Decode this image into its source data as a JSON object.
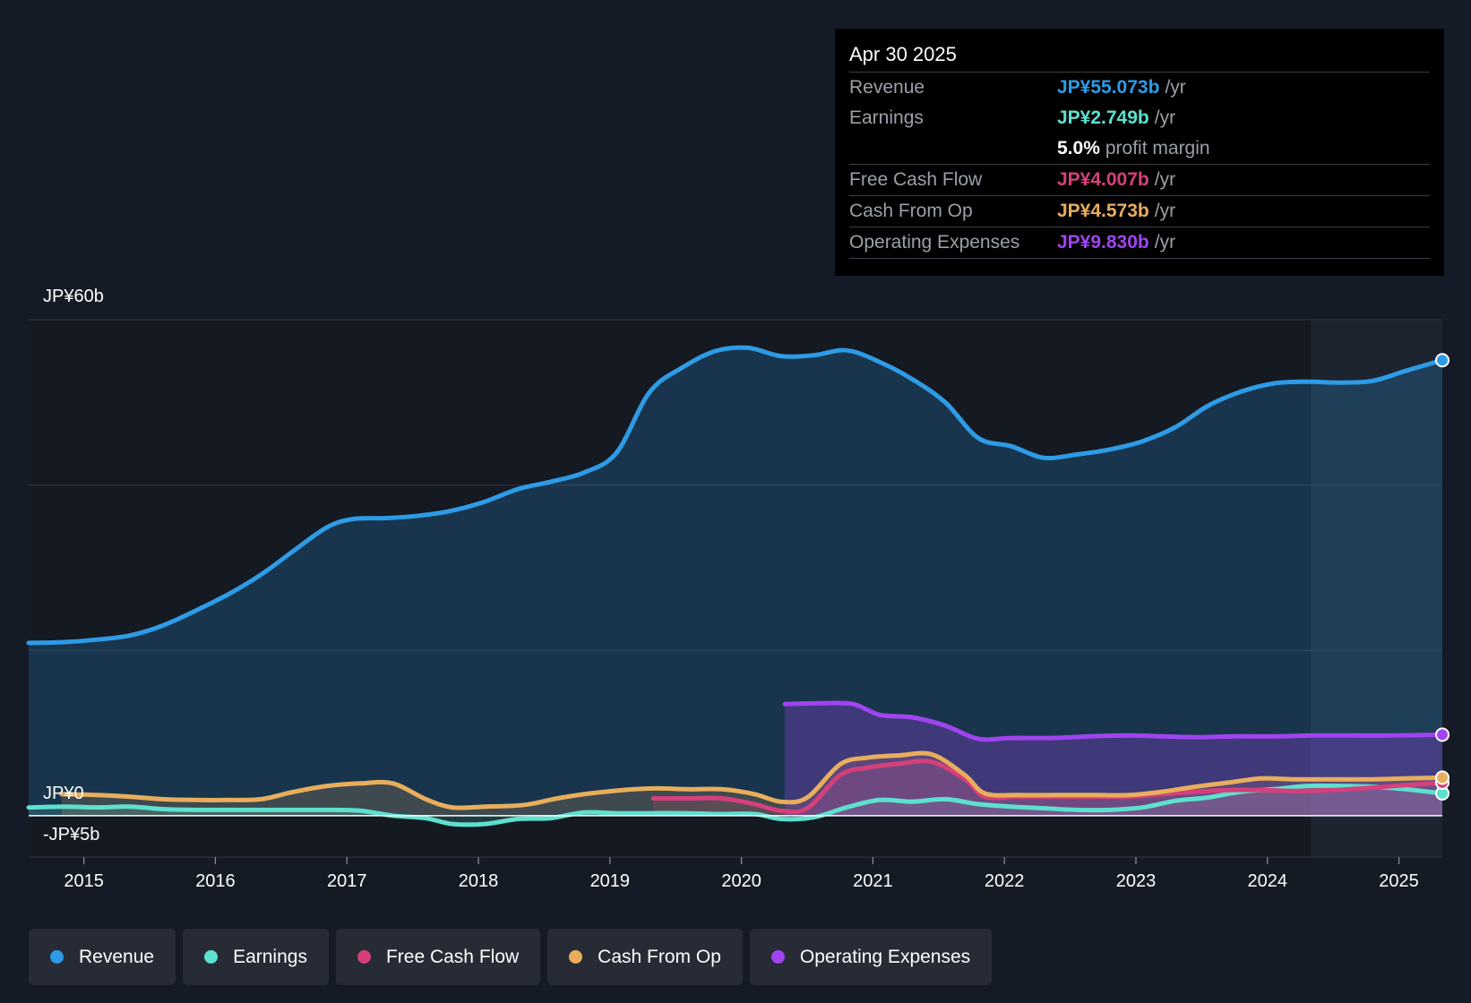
{
  "tooltip": {
    "date": "Apr 30 2025",
    "rows": [
      {
        "label": "Revenue",
        "value": "JP¥55.073b",
        "unit": "/yr",
        "color": "#2e9be6"
      },
      {
        "label": "Earnings",
        "value": "JP¥2.749b",
        "unit": "/yr",
        "color": "#5ee0cf"
      },
      {
        "label": "Free Cash Flow",
        "value": "JP¥4.007b",
        "unit": "/yr",
        "color": "#d6407a"
      },
      {
        "label": "Cash From Op",
        "value": "JP¥4.573b",
        "unit": "/yr",
        "color": "#e8ae5c"
      },
      {
        "label": "Operating Expenses",
        "value": "JP¥9.830b",
        "unit": "/yr",
        "color": "#a044f0"
      }
    ],
    "profit_margin_value": "5.0%",
    "profit_margin_label": "profit margin"
  },
  "legend": [
    {
      "label": "Revenue",
      "color": "#2e9be6"
    },
    {
      "label": "Earnings",
      "color": "#5ee0cf"
    },
    {
      "label": "Free Cash Flow",
      "color": "#d6407a"
    },
    {
      "label": "Cash From Op",
      "color": "#e8ae5c"
    },
    {
      "label": "Operating Expenses",
      "color": "#a044f0"
    }
  ],
  "chart_data": {
    "type": "area",
    "title": "",
    "xlabel": "",
    "ylabel": "",
    "ylim": [
      -5,
      60
    ],
    "xlim": [
      2014.58,
      2025.33
    ],
    "y_tick_labels": [
      {
        "value": 60,
        "label": "JP¥60b"
      },
      {
        "value": 0,
        "label": "JP¥0"
      },
      {
        "value": -5,
        "label": "-JP¥5b"
      }
    ],
    "gridlines": [
      60,
      40,
      20,
      0,
      -5
    ],
    "x_ticks": [
      2015,
      2016,
      2017,
      2018,
      2019,
      2020,
      2021,
      2022,
      2023,
      2024,
      2025
    ],
    "x_tick_labels": [
      "2015",
      "2016",
      "2017",
      "2018",
      "2019",
      "2020",
      "2021",
      "2022",
      "2023",
      "2024",
      "2025"
    ],
    "highlight_start": 2024.33,
    "series": [
      {
        "name": "Revenue",
        "color": "#2e9be6",
        "fill": true,
        "x": [
          2014.58,
          2014.85,
          2015.1,
          2015.35,
          2015.6,
          2015.85,
          2016.1,
          2016.35,
          2016.6,
          2016.85,
          2017.05,
          2017.3,
          2017.55,
          2017.8,
          2018.05,
          2018.3,
          2018.55,
          2018.8,
          2019.05,
          2019.3,
          2019.55,
          2019.8,
          2020.05,
          2020.3,
          2020.55,
          2020.8,
          2021.05,
          2021.3,
          2021.55,
          2021.8,
          2022.05,
          2022.3,
          2022.55,
          2022.8,
          2023.05,
          2023.3,
          2023.55,
          2023.8,
          2024.05,
          2024.3,
          2024.55,
          2024.8,
          2025.05,
          2025.33
        ],
        "values": [
          20.9,
          21.0,
          21.3,
          21.8,
          23.0,
          24.8,
          26.8,
          29.2,
          32.1,
          34.9,
          35.9,
          36.0,
          36.3,
          36.9,
          38.0,
          39.5,
          40.4,
          41.5,
          43.9,
          51.2,
          54.2,
          56.2,
          56.6,
          55.6,
          55.7,
          56.3,
          54.9,
          52.8,
          50.0,
          45.7,
          44.7,
          43.3,
          43.7,
          44.3,
          45.3,
          47.0,
          49.6,
          51.3,
          52.3,
          52.5,
          52.4,
          52.6,
          53.8,
          55.1
        ]
      },
      {
        "name": "Earnings",
        "color": "#5ee0cf",
        "fill": true,
        "x": [
          2014.58,
          2014.85,
          2015.1,
          2015.35,
          2015.6,
          2015.85,
          2016.1,
          2016.35,
          2016.6,
          2016.85,
          2017.1,
          2017.35,
          2017.6,
          2017.8,
          2018.05,
          2018.3,
          2018.55,
          2018.8,
          2019.05,
          2019.3,
          2019.55,
          2019.8,
          2020.1,
          2020.3,
          2020.55,
          2020.8,
          2021.05,
          2021.3,
          2021.55,
          2021.8,
          2022.05,
          2022.3,
          2022.55,
          2022.8,
          2023.05,
          2023.3,
          2023.55,
          2023.8,
          2024.05,
          2024.3,
          2024.55,
          2024.8,
          2025.05,
          2025.33
        ],
        "values": [
          1.0,
          1.1,
          1.0,
          1.1,
          0.8,
          0.7,
          0.7,
          0.7,
          0.7,
          0.7,
          0.6,
          0.0,
          -0.3,
          -1.0,
          -1.0,
          -0.4,
          -0.3,
          0.4,
          0.3,
          0.3,
          0.3,
          0.2,
          0.2,
          -0.4,
          -0.2,
          1.0,
          1.9,
          1.7,
          2.0,
          1.4,
          1.1,
          0.9,
          0.7,
          0.7,
          1.0,
          1.8,
          2.2,
          2.9,
          3.2,
          3.6,
          3.6,
          3.5,
          3.2,
          2.7
        ]
      },
      {
        "name": "Free Cash Flow",
        "color": "#d6407a",
        "fill": true,
        "x": [
          2019.33,
          2019.6,
          2019.85,
          2020.1,
          2020.3,
          2020.5,
          2020.75,
          2020.95,
          2021.2,
          2021.45,
          2021.7,
          2021.85,
          2022.1,
          2022.4,
          2022.7,
          2022.95,
          2023.2,
          2023.45,
          2023.7,
          2023.95,
          2024.2,
          2024.5,
          2024.8,
          2025.05,
          2025.33
        ],
        "values": [
          2.1,
          2.1,
          2.1,
          1.4,
          0.6,
          0.9,
          4.9,
          5.8,
          6.3,
          6.5,
          4.4,
          2.3,
          2.3,
          2.3,
          2.3,
          2.3,
          2.6,
          2.9,
          3.1,
          3.1,
          3.0,
          3.1,
          3.4,
          3.7,
          4.0
        ]
      },
      {
        "name": "Cash From Op",
        "color": "#e8ae5c",
        "fill": true,
        "x": [
          2014.83,
          2015.1,
          2015.35,
          2015.6,
          2015.85,
          2016.1,
          2016.35,
          2016.6,
          2016.85,
          2017.1,
          2017.35,
          2017.6,
          2017.8,
          2018.05,
          2018.35,
          2018.6,
          2018.85,
          2019.1,
          2019.35,
          2019.6,
          2019.85,
          2020.1,
          2020.3,
          2020.5,
          2020.75,
          2020.95,
          2021.2,
          2021.45,
          2021.7,
          2021.85,
          2022.1,
          2022.4,
          2022.7,
          2022.95,
          2023.2,
          2023.45,
          2023.7,
          2023.95,
          2024.2,
          2024.5,
          2024.8,
          2025.05,
          2025.33
        ],
        "values": [
          2.6,
          2.5,
          2.3,
          2.0,
          1.9,
          1.9,
          2.0,
          2.9,
          3.6,
          3.9,
          3.9,
          2.0,
          1.0,
          1.1,
          1.3,
          2.1,
          2.7,
          3.1,
          3.3,
          3.2,
          3.2,
          2.6,
          1.7,
          2.2,
          6.2,
          7.0,
          7.3,
          7.4,
          4.9,
          2.7,
          2.5,
          2.5,
          2.5,
          2.5,
          2.9,
          3.5,
          4.0,
          4.5,
          4.4,
          4.4,
          4.4,
          4.5,
          4.6
        ]
      },
      {
        "name": "Operating Expenses",
        "color": "#a044f0",
        "fill": true,
        "x": [
          2020.33,
          2020.6,
          2020.85,
          2021.05,
          2021.3,
          2021.55,
          2021.8,
          2022.05,
          2022.35,
          2022.65,
          2022.95,
          2023.2,
          2023.45,
          2023.75,
          2024.05,
          2024.35,
          2024.65,
          2024.95,
          2025.33
        ],
        "values": [
          13.5,
          13.6,
          13.5,
          12.2,
          11.9,
          10.9,
          9.3,
          9.4,
          9.4,
          9.6,
          9.7,
          9.6,
          9.5,
          9.6,
          9.6,
          9.7,
          9.7,
          9.7,
          9.8
        ]
      }
    ]
  }
}
